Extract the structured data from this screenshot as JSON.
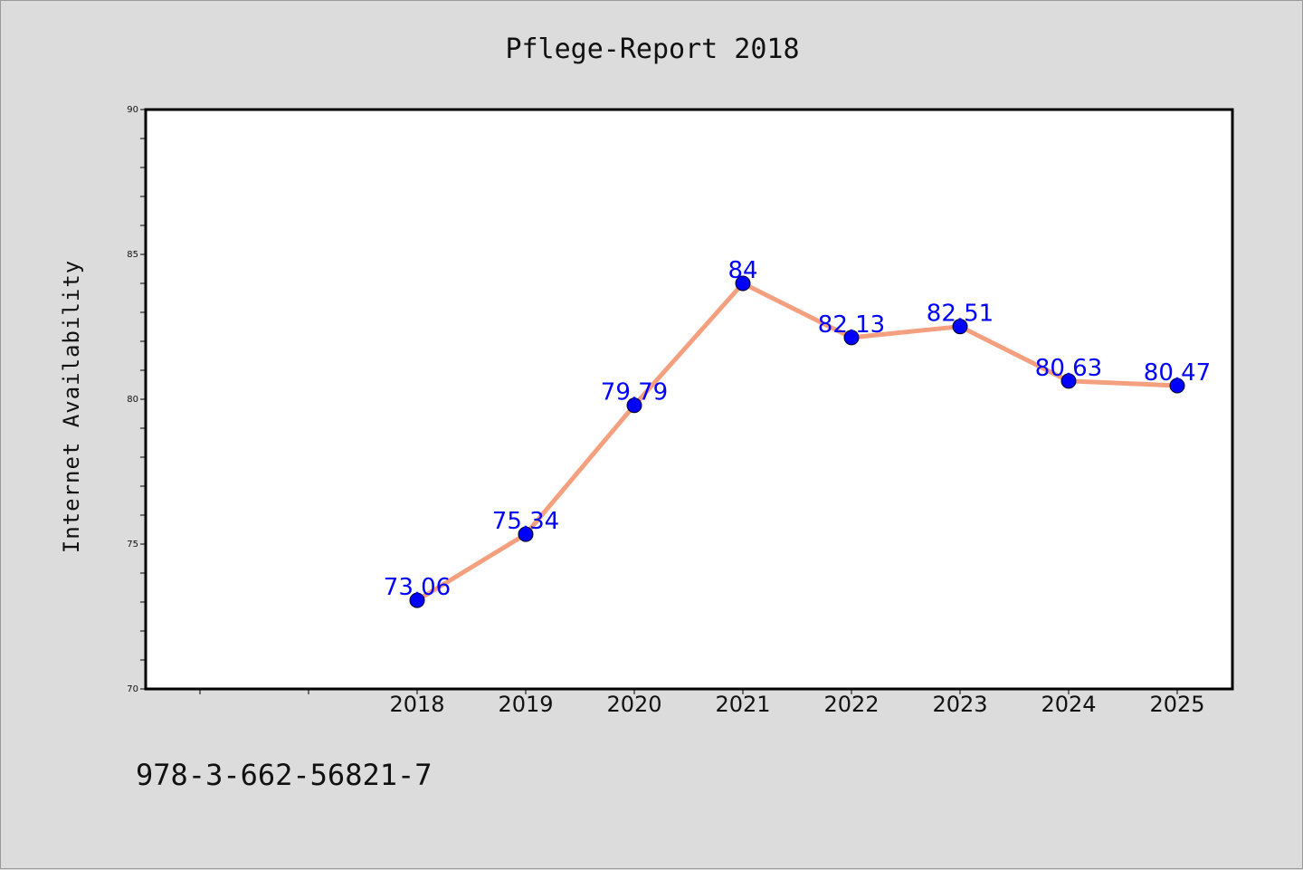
{
  "chart_data": {
    "type": "line",
    "title": "Pflege-Report 2018",
    "xlabel": "",
    "ylabel": "Internet Availability",
    "categories": [
      "2018",
      "2019",
      "2020",
      "2021",
      "2022",
      "2023",
      "2024",
      "2025"
    ],
    "series": [
      {
        "values": [
          73.06,
          75.34,
          79.79,
          84,
          82.13,
          82.51,
          80.63,
          80.47
        ],
        "data_labels": [
          "73.06",
          "75.34",
          "79.79",
          "84",
          "82.13",
          "82.51",
          "80.63",
          "80.47"
        ]
      }
    ],
    "ylim": [
      70,
      90
    ],
    "yticks": [
      "70",
      "75",
      "80",
      "85",
      "90"
    ],
    "grid": false,
    "legend": "none",
    "colors": {
      "line": "#f4a07f",
      "marker": "#0000ff",
      "label": "#0000ff"
    }
  },
  "footnote": "978-3-662-56821-7"
}
